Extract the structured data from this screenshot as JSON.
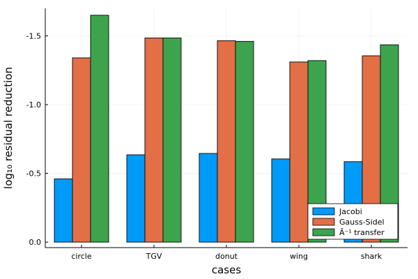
{
  "chart_data": {
    "type": "bar",
    "title": "",
    "xlabel": "cases",
    "ylabel": "log₁₀ residual reduction",
    "categories": [
      "circle",
      "TGV",
      "donut",
      "wing",
      "shark"
    ],
    "series": [
      {
        "name": "Jacobi",
        "color": "#009af9",
        "values": [
          -0.46,
          -0.635,
          -0.645,
          -0.605,
          -0.585
        ]
      },
      {
        "name": "Gauss-Sidel",
        "color": "#e26f46",
        "values": [
          -1.34,
          -1.485,
          -1.465,
          -1.31,
          -1.355
        ]
      },
      {
        "name": "Ã⁻¹ transfer",
        "color": "#3da44d",
        "values": [
          -1.65,
          -1.485,
          -1.46,
          -1.32,
          -1.435
        ]
      }
    ],
    "y_axis_inverted": true,
    "ylim": [
      0.04,
      -1.7
    ],
    "yticks": [
      0.0,
      -0.5,
      -1.0,
      -1.5
    ],
    "ytick_labels": [
      "0.0",
      "-0.5",
      "-1.0",
      "-1.5"
    ],
    "grid": true,
    "legend_position": "bottom-right"
  }
}
